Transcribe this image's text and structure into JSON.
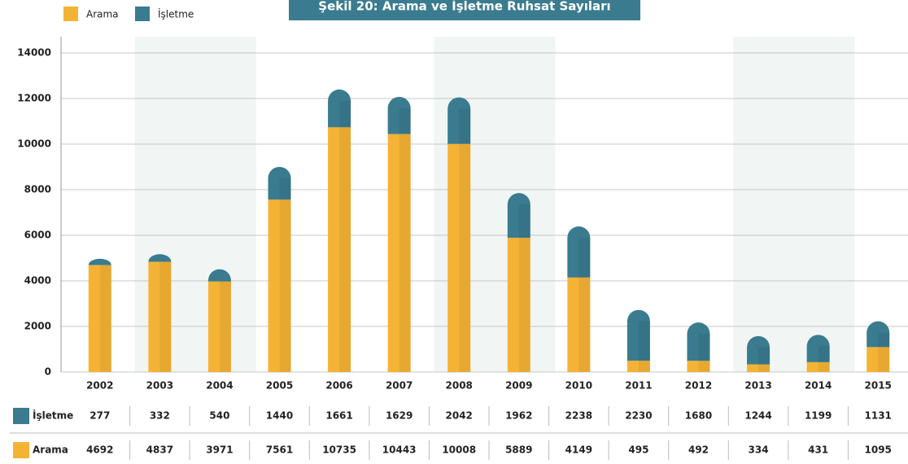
{
  "chart_data": {
    "type": "bar",
    "stacked": true,
    "title": "Şekil 20: Arama ve İşletme Ruhsat Sayıları",
    "categories": [
      "2002",
      "2003",
      "2004",
      "2005",
      "2006",
      "2007",
      "2008",
      "2009",
      "2010",
      "2011",
      "2012",
      "2013",
      "2014",
      "2015"
    ],
    "series": [
      {
        "name": "Arama",
        "color": "#f5b335",
        "values": [
          4692,
          4837,
          3971,
          7561,
          10735,
          10443,
          10008,
          5889,
          4149,
          495,
          492,
          334,
          431,
          1095
        ]
      },
      {
        "name": "İşletme",
        "color": "#3a7b8f",
        "values": [
          277,
          332,
          540,
          1440,
          1661,
          1629,
          2042,
          1962,
          2238,
          2230,
          1680,
          1244,
          1199,
          1131
        ]
      }
    ],
    "ylim": [
      0,
      14000
    ],
    "yticks": [
      0,
      2000,
      4000,
      6000,
      8000,
      10000,
      12000,
      14000
    ],
    "grid": true
  }
}
